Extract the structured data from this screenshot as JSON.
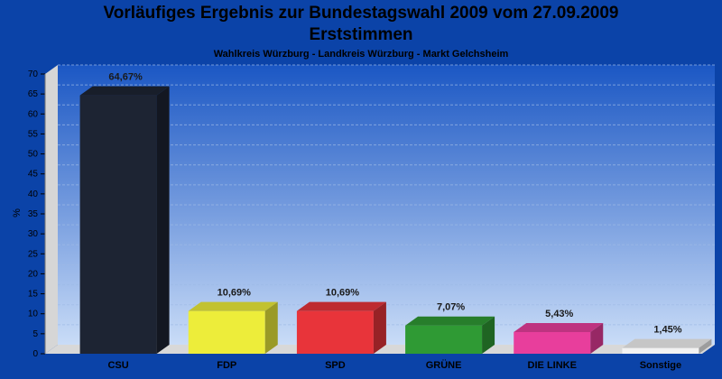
{
  "chart_data": {
    "type": "bar",
    "title": "Vorläufiges Ergebnis zur Bundestagswahl 2009 vom 27.09.2009",
    "title2": "Erststimmen",
    "subtitle": "Wahlkreis Würzburg - Landkreis Würzburg - Markt Gelchsheim",
    "ylabel": "%",
    "xlabel": "",
    "ylim": [
      0,
      70
    ],
    "yticks": [
      0,
      5,
      10,
      15,
      20,
      25,
      30,
      35,
      40,
      45,
      50,
      55,
      60,
      65,
      70
    ],
    "grid": true,
    "categories": [
      "CSU",
      "FDP",
      "SPD",
      "GRÜNE",
      "DIE LINKE",
      "Sonstige"
    ],
    "values": [
      64.67,
      10.69,
      10.69,
      7.07,
      5.43,
      1.45
    ],
    "value_labels": [
      "64,67%",
      "10,69%",
      "10,69%",
      "7,07%",
      "5,43%",
      "1,45%"
    ],
    "colors": [
      "#1d2433",
      "#eded3a",
      "#e8343a",
      "#2f9a34",
      "#e83e9c",
      "#f2f2f2"
    ]
  }
}
